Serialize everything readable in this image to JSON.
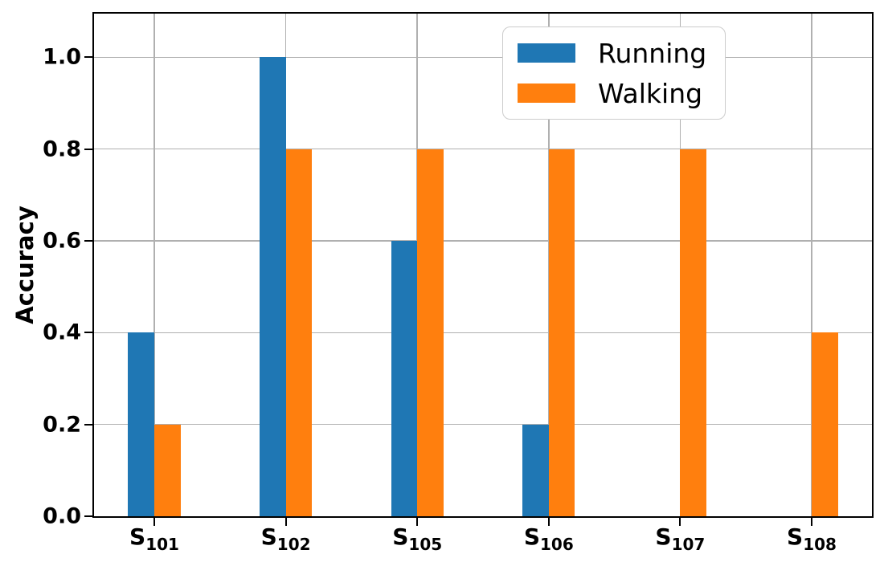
{
  "chart_data": {
    "type": "bar",
    "title": "",
    "xlabel": "",
    "ylabel": "Accuracy",
    "categories": [
      {
        "base": "S",
        "sub": "101"
      },
      {
        "base": "S",
        "sub": "102"
      },
      {
        "base": "S",
        "sub": "105"
      },
      {
        "base": "S",
        "sub": "106"
      },
      {
        "base": "S",
        "sub": "107"
      },
      {
        "base": "S",
        "sub": "108"
      }
    ],
    "series": [
      {
        "name": "Running",
        "color": "#1f77b4",
        "values": [
          0.4,
          1.0,
          0.6,
          0.2,
          0,
          0
        ]
      },
      {
        "name": "Walking",
        "color": "#ff7f0e",
        "values": [
          0.2,
          0.8,
          0.8,
          0.8,
          0.8,
          0.4
        ]
      }
    ],
    "yticks": [
      "0.0",
      "0.2",
      "0.4",
      "0.6",
      "0.8",
      "1.0"
    ],
    "ylim": [
      0,
      1.095
    ],
    "grid": true,
    "legend": {
      "position": "upper right"
    },
    "colors": {
      "grid": "#b0b0b0",
      "spine": "#000000",
      "background": "#ffffff",
      "legend_border": "#cccccc"
    }
  }
}
